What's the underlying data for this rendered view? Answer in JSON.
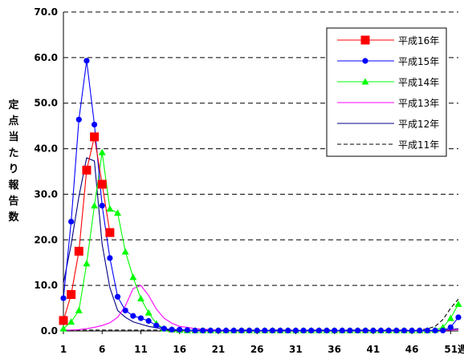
{
  "chart_data": {
    "type": "line",
    "ylabel": "定点当たり報告数",
    "ylim": [
      0,
      70
    ],
    "yticks": [
      "0.0",
      "10.0",
      "20.0",
      "30.0",
      "40.0",
      "50.0",
      "60.0",
      "70.0"
    ],
    "xlim": [
      1,
      52
    ],
    "xticks": [
      "1",
      "6",
      "11",
      "16",
      "21",
      "26",
      "31",
      "36",
      "41",
      "46",
      "51週"
    ],
    "legend_position": "top-right",
    "gridlines": "horizontal-dashed",
    "series": [
      {
        "name": "平成16年",
        "color": "#ff0000",
        "marker": "square",
        "x": [
          1,
          2,
          3,
          4,
          5,
          6,
          7
        ],
        "y": [
          2.3,
          8.0,
          17.5,
          35.3,
          42.6,
          32.2,
          21.6
        ]
      },
      {
        "name": "平成15年",
        "color": "#0000ff",
        "marker": "circle",
        "x": [
          1,
          2,
          3,
          4,
          5,
          6,
          7,
          8,
          9,
          10,
          11,
          12,
          13,
          14,
          15,
          16,
          17,
          18,
          19,
          20,
          21,
          22,
          23,
          24,
          25,
          26,
          27,
          28,
          29,
          30,
          31,
          32,
          33,
          34,
          35,
          36,
          37,
          38,
          39,
          40,
          41,
          42,
          43,
          44,
          45,
          46,
          47,
          48,
          49,
          50,
          51,
          52
        ],
        "y": [
          7.2,
          24.0,
          46.4,
          59.3,
          45.3,
          27.5,
          16.0,
          7.5,
          4.5,
          3.3,
          2.8,
          2.2,
          1.2,
          0.5,
          0.3,
          0.3,
          0.2,
          0.1,
          0.1,
          0.1,
          0.1,
          0.1,
          0.1,
          0.1,
          0.1,
          0.1,
          0.1,
          0.1,
          0.1,
          0.1,
          0.1,
          0.1,
          0.1,
          0.1,
          0.1,
          0.1,
          0.1,
          0.1,
          0.1,
          0.1,
          0.1,
          0.1,
          0.1,
          0.1,
          0.1,
          0.1,
          0.1,
          0.1,
          0.1,
          0.1,
          0.8,
          3.0
        ]
      },
      {
        "name": "平成14年",
        "color": "#00ff00",
        "marker": "triangle",
        "x": [
          1,
          2,
          3,
          4,
          5,
          6,
          7,
          8,
          9,
          10,
          11,
          12,
          13,
          14,
          15,
          16,
          17,
          18,
          19,
          20,
          21,
          22,
          23,
          24,
          25,
          26,
          27,
          28,
          29,
          30,
          31,
          32,
          33,
          34,
          35,
          36,
          37,
          38,
          39,
          40,
          41,
          42,
          43,
          44,
          45,
          46,
          47,
          48,
          49,
          50,
          51,
          52
        ],
        "y": [
          0.5,
          2.0,
          4.5,
          14.8,
          27.5,
          39.2,
          26.8,
          25.9,
          17.4,
          11.8,
          7.1,
          4.0,
          1.6,
          0.5,
          0.3,
          0.2,
          0.1,
          0.1,
          0.1,
          0.1,
          0.1,
          0.1,
          0.1,
          0.1,
          0.1,
          0.1,
          0.1,
          0.1,
          0.1,
          0.1,
          0.1,
          0.1,
          0.1,
          0.1,
          0.1,
          0.1,
          0.1,
          0.1,
          0.1,
          0.1,
          0.1,
          0.1,
          0.1,
          0.1,
          0.1,
          0.1,
          0.1,
          0.1,
          0.2,
          0.8,
          2.8,
          5.9
        ]
      },
      {
        "name": "平成13年",
        "color": "#ff00ff",
        "marker": "none",
        "x": [
          1,
          2,
          3,
          4,
          5,
          6,
          7,
          8,
          9,
          10,
          11,
          12,
          13,
          14,
          15,
          16,
          17,
          18,
          19,
          20,
          21,
          22,
          23,
          24,
          25,
          26,
          27,
          28,
          29,
          30,
          31,
          32,
          33,
          34,
          35,
          36,
          37,
          38,
          39,
          40,
          41,
          42,
          43,
          44,
          45,
          46,
          47,
          48,
          49,
          50,
          51,
          52
        ],
        "y": [
          0.2,
          0.2,
          0.3,
          0.5,
          0.8,
          1.2,
          1.8,
          3.0,
          5.5,
          9.3,
          10.0,
          7.8,
          4.8,
          2.8,
          1.7,
          1.0,
          0.8,
          0.5,
          0.4,
          0.3,
          0.2,
          0.2,
          0.1,
          0.1,
          0.1,
          0.1,
          0.1,
          0.1,
          0.1,
          0.1,
          0.1,
          0.1,
          0.1,
          0.1,
          0.1,
          0.1,
          0.1,
          0.1,
          0.1,
          0.1,
          0.1,
          0.1,
          0.1,
          0.1,
          0.1,
          0.1,
          0.1,
          0.1,
          0.1,
          0.1,
          0.2,
          0.3
        ]
      },
      {
        "name": "平成12年",
        "color": "#000080",
        "marker": "none",
        "x": [
          1,
          2,
          3,
          4,
          5,
          6,
          7,
          8,
          9,
          10,
          11,
          12,
          13,
          14,
          15,
          16,
          17,
          18,
          19,
          20,
          21,
          22,
          23,
          24,
          25,
          26,
          27,
          28,
          29,
          30,
          31,
          32,
          33,
          34,
          35,
          36,
          37,
          38,
          39,
          40,
          41,
          42,
          43,
          44,
          45,
          46,
          47,
          48,
          49,
          50,
          51,
          52
        ],
        "y": [
          10.5,
          19.0,
          29.5,
          38.0,
          37.3,
          19.0,
          9.5,
          4.5,
          3.0,
          2.0,
          1.5,
          1.0,
          0.7,
          0.4,
          0.3,
          0.2,
          0.2,
          0.1,
          0.1,
          0.1,
          0.1,
          0.1,
          0.1,
          0.1,
          0.1,
          0.1,
          0.1,
          0.1,
          0.1,
          0.1,
          0.1,
          0.1,
          0.1,
          0.1,
          0.1,
          0.1,
          0.1,
          0.1,
          0.1,
          0.1,
          0.1,
          0.1,
          0.1,
          0.1,
          0.1,
          0.1,
          0.1,
          0.1,
          0.1,
          0.2,
          0.3,
          0.5
        ]
      },
      {
        "name": "平成11年",
        "color": "#000000",
        "marker": "none",
        "dash": true,
        "x": [
          1,
          2,
          3,
          4,
          5,
          6,
          7,
          8,
          9,
          10,
          11,
          12,
          13,
          14,
          15,
          16,
          17,
          18,
          19,
          20,
          21,
          22,
          23,
          24,
          25,
          26,
          27,
          28,
          29,
          30,
          31,
          32,
          33,
          34,
          35,
          36,
          37,
          38,
          39,
          40,
          41,
          42,
          43,
          44,
          45,
          46,
          47,
          48,
          49,
          50,
          51,
          52
        ],
        "y": [
          0.2,
          0.2,
          0.2,
          0.2,
          0.2,
          0.2,
          0.2,
          0.2,
          0.2,
          0.2,
          0.2,
          0.2,
          0.2,
          0.2,
          0.2,
          0.2,
          0.2,
          0.2,
          0.2,
          0.2,
          0.2,
          0.2,
          0.2,
          0.2,
          0.2,
          0.2,
          0.2,
          0.2,
          0.2,
          0.2,
          0.2,
          0.2,
          0.2,
          0.2,
          0.2,
          0.2,
          0.2,
          0.2,
          0.2,
          0.2,
          0.2,
          0.2,
          0.2,
          0.2,
          0.2,
          0.2,
          0.2,
          0.5,
          1.0,
          2.5,
          5.0,
          7.0
        ]
      }
    ]
  }
}
